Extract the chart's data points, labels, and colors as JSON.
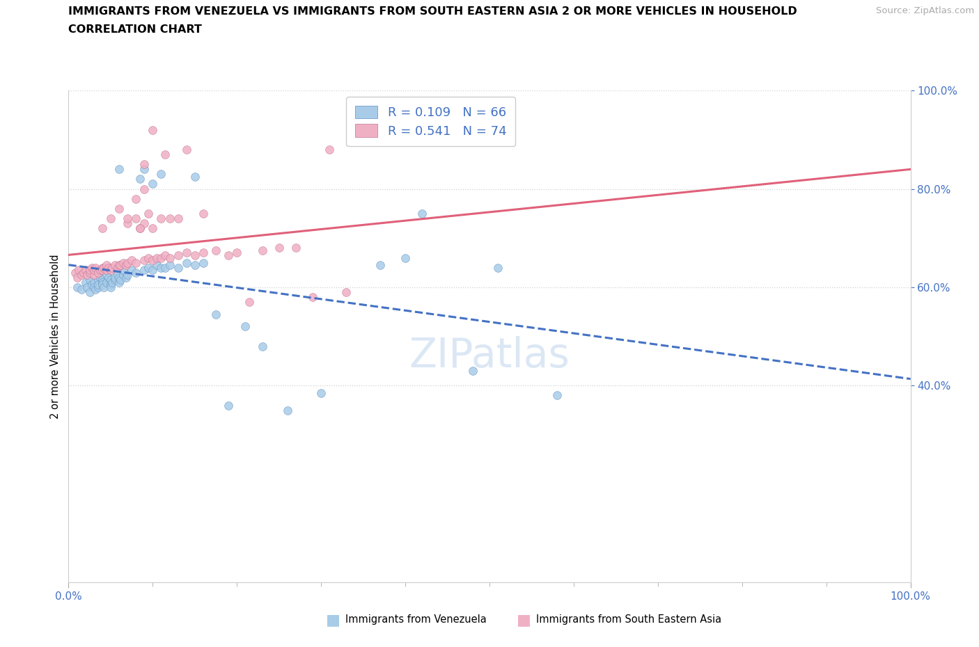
{
  "title_line1": "IMMIGRANTS FROM VENEZUELA VS IMMIGRANTS FROM SOUTH EASTERN ASIA 2 OR MORE VEHICLES IN HOUSEHOLD",
  "title_line2": "CORRELATION CHART",
  "source_text": "Source: ZipAtlas.com",
  "ylabel": "2 or more Vehicles in Household",
  "xlim": [
    0.0,
    1.0
  ],
  "ylim": [
    0.0,
    1.0
  ],
  "xticks": [
    0.0,
    1.0
  ],
  "yticks": [
    0.4,
    0.6,
    0.8,
    1.0
  ],
  "watermark": "ZIPatlas",
  "series_names": [
    "Immigrants from Venezuela",
    "Immigrants from South Eastern Asia"
  ],
  "scatter_colors": [
    "#a8cce8",
    "#f0b0c4"
  ],
  "edge_colors": [
    "#6090c0",
    "#c07090"
  ],
  "line_colors": [
    "#4472c4",
    "#e0607a"
  ],
  "line_styles": [
    "--",
    "-"
  ],
  "venezuela_x": [
    0.01,
    0.015,
    0.02,
    0.022,
    0.025,
    0.025,
    0.028,
    0.03,
    0.03,
    0.032,
    0.035,
    0.035,
    0.035,
    0.038,
    0.04,
    0.04,
    0.04,
    0.042,
    0.045,
    0.045,
    0.048,
    0.05,
    0.05,
    0.05,
    0.052,
    0.055,
    0.055,
    0.058,
    0.06,
    0.06,
    0.062,
    0.065,
    0.065,
    0.068,
    0.07,
    0.075,
    0.08,
    0.085,
    0.09,
    0.095,
    0.1,
    0.105,
    0.11,
    0.115,
    0.12,
    0.13,
    0.14,
    0.15,
    0.16,
    0.175,
    0.19,
    0.21,
    0.23,
    0.26,
    0.3,
    0.37,
    0.4,
    0.42,
    0.48,
    0.51,
    0.58,
    0.1,
    0.15,
    0.11,
    0.09,
    0.06
  ],
  "venezuela_y": [
    0.6,
    0.595,
    0.61,
    0.6,
    0.59,
    0.615,
    0.605,
    0.61,
    0.6,
    0.595,
    0.615,
    0.6,
    0.605,
    0.62,
    0.615,
    0.61,
    0.605,
    0.6,
    0.61,
    0.625,
    0.62,
    0.605,
    0.615,
    0.6,
    0.61,
    0.615,
    0.62,
    0.625,
    0.61,
    0.62,
    0.615,
    0.625,
    0.635,
    0.62,
    0.625,
    0.635,
    0.63,
    0.82,
    0.635,
    0.64,
    0.635,
    0.645,
    0.64,
    0.64,
    0.645,
    0.64,
    0.65,
    0.645,
    0.65,
    0.545,
    0.36,
    0.52,
    0.48,
    0.35,
    0.385,
    0.645,
    0.66,
    0.75,
    0.43,
    0.64,
    0.38,
    0.81,
    0.825,
    0.83,
    0.84,
    0.84
  ],
  "sea_x": [
    0.008,
    0.01,
    0.012,
    0.015,
    0.018,
    0.02,
    0.022,
    0.025,
    0.025,
    0.028,
    0.03,
    0.03,
    0.032,
    0.035,
    0.038,
    0.04,
    0.04,
    0.042,
    0.045,
    0.045,
    0.048,
    0.05,
    0.052,
    0.055,
    0.058,
    0.06,
    0.062,
    0.065,
    0.068,
    0.07,
    0.075,
    0.08,
    0.085,
    0.09,
    0.095,
    0.1,
    0.105,
    0.11,
    0.115,
    0.12,
    0.13,
    0.14,
    0.15,
    0.16,
    0.175,
    0.19,
    0.2,
    0.215,
    0.23,
    0.25,
    0.27,
    0.29,
    0.31,
    0.33,
    0.07,
    0.08,
    0.09,
    0.1,
    0.12,
    0.085,
    0.095,
    0.11,
    0.13,
    0.09,
    0.1,
    0.115,
    0.14,
    0.16,
    0.04,
    0.05,
    0.06,
    0.07,
    0.08,
    0.09
  ],
  "sea_y": [
    0.63,
    0.62,
    0.635,
    0.625,
    0.63,
    0.635,
    0.625,
    0.63,
    0.635,
    0.64,
    0.625,
    0.635,
    0.64,
    0.63,
    0.635,
    0.64,
    0.635,
    0.64,
    0.635,
    0.645,
    0.64,
    0.635,
    0.64,
    0.645,
    0.64,
    0.645,
    0.645,
    0.65,
    0.645,
    0.65,
    0.655,
    0.65,
    0.72,
    0.655,
    0.66,
    0.655,
    0.66,
    0.66,
    0.665,
    0.66,
    0.665,
    0.67,
    0.665,
    0.67,
    0.675,
    0.665,
    0.67,
    0.57,
    0.675,
    0.68,
    0.68,
    0.58,
    0.88,
    0.59,
    0.73,
    0.74,
    0.73,
    0.72,
    0.74,
    0.72,
    0.75,
    0.74,
    0.74,
    0.85,
    0.92,
    0.87,
    0.88,
    0.75,
    0.72,
    0.74,
    0.76,
    0.74,
    0.78,
    0.8
  ]
}
